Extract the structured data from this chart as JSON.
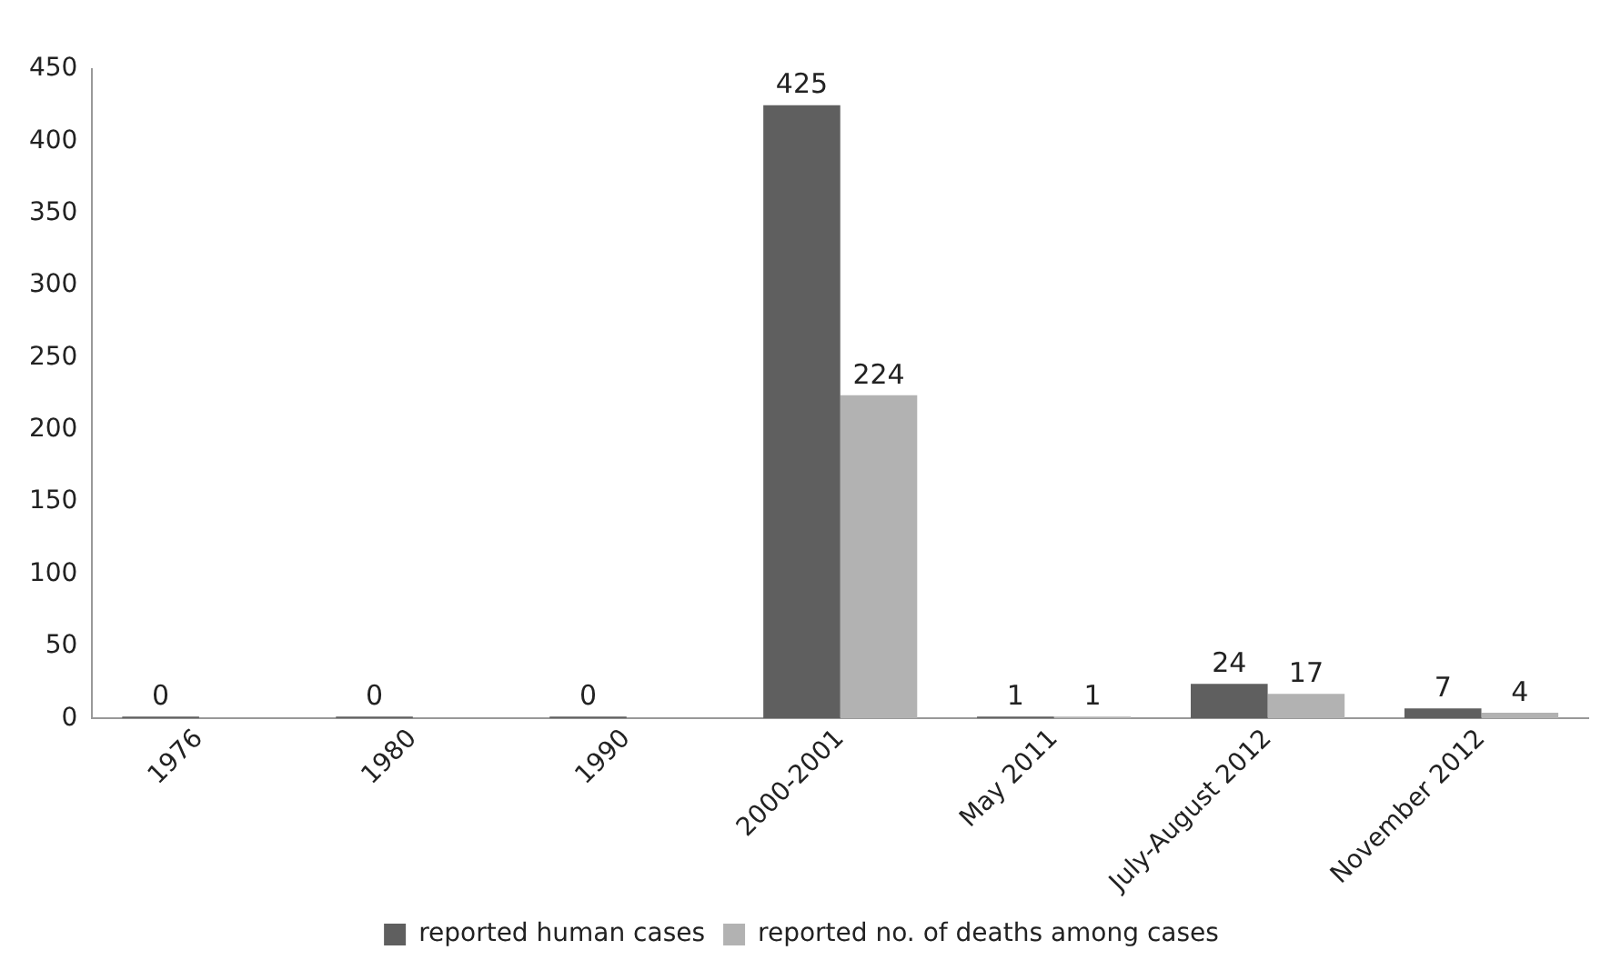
{
  "chart_data": {
    "type": "bar",
    "categories": [
      "1976",
      "1980",
      "1990",
      "2000-2001",
      "May 2011",
      "July-August 2012",
      "November 2012"
    ],
    "series": [
      {
        "name": "reported human cases",
        "color": "#5f5f5f",
        "values": [
          0,
          0,
          0,
          425,
          1,
          24,
          7
        ]
      },
      {
        "name": "reported no. of deaths among cases",
        "color": "#b2b2b2",
        "values": [
          null,
          null,
          null,
          224,
          1,
          17,
          4
        ]
      }
    ],
    "ylim": [
      0,
      450
    ],
    "yticks": [
      0,
      50,
      100,
      150,
      200,
      250,
      300,
      350,
      400,
      450
    ],
    "grid": false,
    "legend": "bottom",
    "data_labels": true
  }
}
